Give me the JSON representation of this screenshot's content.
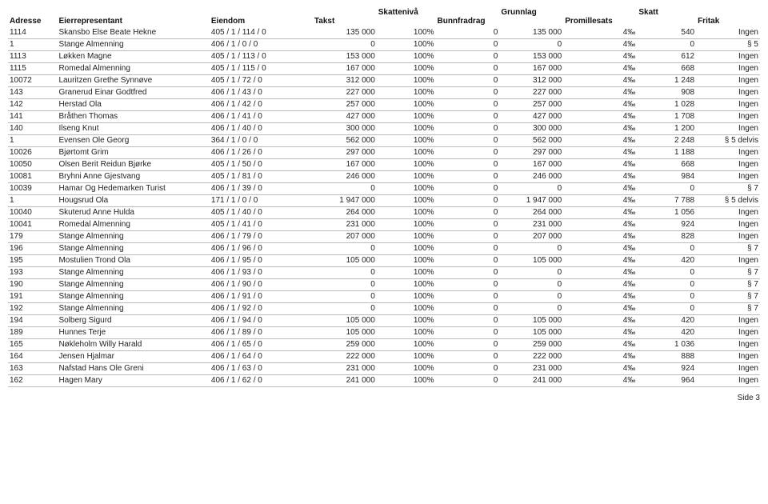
{
  "headers_top": {
    "skatteniva": "Skattenivå",
    "grunnlag": "Grunnlag",
    "skatt": "Skatt"
  },
  "headers_sub": {
    "adresse": "Adresse",
    "eier": "Eierrepresentant",
    "eiendom": "Eiendom",
    "takst": "Takst",
    "bunnfradrag": "Bunnfradrag",
    "promillesats": "Promillesats",
    "fritak": "Fritak"
  },
  "rows": [
    {
      "adresse": "1114",
      "eier": "Skansbo Else Beate Hekne",
      "eiendom": "405 / 1 / 114 / 0",
      "takst": "135 000",
      "skatteniva": "100%",
      "bunn": "0",
      "grunnlag": "135 000",
      "promille": "4‰",
      "skatt": "540",
      "fritak": "Ingen"
    },
    {
      "adresse": "1",
      "eier": "Stange Almenning",
      "eiendom": "406 / 1 / 0 / 0",
      "takst": "0",
      "skatteniva": "100%",
      "bunn": "0",
      "grunnlag": "0",
      "promille": "4‰",
      "skatt": "0",
      "fritak": "§ 5"
    },
    {
      "adresse": "1113",
      "eier": "Løkken Magne",
      "eiendom": "405 / 1 / 113 / 0",
      "takst": "153 000",
      "skatteniva": "100%",
      "bunn": "0",
      "grunnlag": "153 000",
      "promille": "4‰",
      "skatt": "612",
      "fritak": "Ingen"
    },
    {
      "adresse": "1115",
      "eier": "Romedal Almenning",
      "eiendom": "405 / 1 / 115 / 0",
      "takst": "167 000",
      "skatteniva": "100%",
      "bunn": "0",
      "grunnlag": "167 000",
      "promille": "4‰",
      "skatt": "668",
      "fritak": "Ingen"
    },
    {
      "adresse": "10072",
      "eier": "Lauritzen Grethe Synnøve",
      "eiendom": "405 / 1 / 72 / 0",
      "takst": "312 000",
      "skatteniva": "100%",
      "bunn": "0",
      "grunnlag": "312 000",
      "promille": "4‰",
      "skatt": "1 248",
      "fritak": "Ingen"
    },
    {
      "adresse": "143",
      "eier": "Granerud Einar Godtfred",
      "eiendom": "406 / 1 / 43 / 0",
      "takst": "227 000",
      "skatteniva": "100%",
      "bunn": "0",
      "grunnlag": "227 000",
      "promille": "4‰",
      "skatt": "908",
      "fritak": "Ingen"
    },
    {
      "adresse": "142",
      "eier": "Herstad Ola",
      "eiendom": "406 / 1 / 42 / 0",
      "takst": "257 000",
      "skatteniva": "100%",
      "bunn": "0",
      "grunnlag": "257 000",
      "promille": "4‰",
      "skatt": "1 028",
      "fritak": "Ingen"
    },
    {
      "adresse": "141",
      "eier": "Bråthen Thomas",
      "eiendom": "406 / 1 / 41 / 0",
      "takst": "427 000",
      "skatteniva": "100%",
      "bunn": "0",
      "grunnlag": "427 000",
      "promille": "4‰",
      "skatt": "1 708",
      "fritak": "Ingen"
    },
    {
      "adresse": "140",
      "eier": "Ilseng Knut",
      "eiendom": "406 / 1 / 40 / 0",
      "takst": "300 000",
      "skatteniva": "100%",
      "bunn": "0",
      "grunnlag": "300 000",
      "promille": "4‰",
      "skatt": "1 200",
      "fritak": "Ingen"
    },
    {
      "adresse": "1",
      "eier": "Evensen Ole Georg",
      "eiendom": "364 / 1 / 0 / 0",
      "takst": "562 000",
      "skatteniva": "100%",
      "bunn": "0",
      "grunnlag": "562 000",
      "promille": "4‰",
      "skatt": "2 248",
      "fritak": "§ 5 delvis"
    },
    {
      "adresse": "10026",
      "eier": "Bjørtomt Grim",
      "eiendom": "406 / 1 / 26 / 0",
      "takst": "297 000",
      "skatteniva": "100%",
      "bunn": "0",
      "grunnlag": "297 000",
      "promille": "4‰",
      "skatt": "1 188",
      "fritak": "Ingen"
    },
    {
      "adresse": "10050",
      "eier": "Olsen Berit Reidun Bjørke",
      "eiendom": "405 / 1 / 50 / 0",
      "takst": "167 000",
      "skatteniva": "100%",
      "bunn": "0",
      "grunnlag": "167 000",
      "promille": "4‰",
      "skatt": "668",
      "fritak": "Ingen"
    },
    {
      "adresse": "10081",
      "eier": "Bryhni Anne Gjestvang",
      "eiendom": "405 / 1 / 81 / 0",
      "takst": "246 000",
      "skatteniva": "100%",
      "bunn": "0",
      "grunnlag": "246 000",
      "promille": "4‰",
      "skatt": "984",
      "fritak": "Ingen"
    },
    {
      "adresse": "10039",
      "eier": "Hamar Og Hedemarken Turist",
      "eiendom": "406 / 1 / 39 / 0",
      "takst": "0",
      "skatteniva": "100%",
      "bunn": "0",
      "grunnlag": "0",
      "promille": "4‰",
      "skatt": "0",
      "fritak": "§ 7"
    },
    {
      "adresse": "1",
      "eier": "Hougsrud Ola",
      "eiendom": "171 / 1 / 0 / 0",
      "takst": "1 947 000",
      "skatteniva": "100%",
      "bunn": "0",
      "grunnlag": "1 947 000",
      "promille": "4‰",
      "skatt": "7 788",
      "fritak": "§ 5 delvis"
    },
    {
      "adresse": "10040",
      "eier": "Skuterud Anne Hulda",
      "eiendom": "405 / 1 / 40 / 0",
      "takst": "264 000",
      "skatteniva": "100%",
      "bunn": "0",
      "grunnlag": "264 000",
      "promille": "4‰",
      "skatt": "1 056",
      "fritak": "Ingen"
    },
    {
      "adresse": "10041",
      "eier": "Romedal Almenning",
      "eiendom": "405 / 1 / 41 / 0",
      "takst": "231 000",
      "skatteniva": "100%",
      "bunn": "0",
      "grunnlag": "231 000",
      "promille": "4‰",
      "skatt": "924",
      "fritak": "Ingen"
    },
    {
      "adresse": "179",
      "eier": "Stange Almenning",
      "eiendom": "406 / 1 / 79 / 0",
      "takst": "207 000",
      "skatteniva": "100%",
      "bunn": "0",
      "grunnlag": "207 000",
      "promille": "4‰",
      "skatt": "828",
      "fritak": "Ingen"
    },
    {
      "adresse": "196",
      "eier": "Stange Almenning",
      "eiendom": "406 / 1 / 96 / 0",
      "takst": "0",
      "skatteniva": "100%",
      "bunn": "0",
      "grunnlag": "0",
      "promille": "4‰",
      "skatt": "0",
      "fritak": "§ 7"
    },
    {
      "adresse": "195",
      "eier": "Mostulien Trond Ola",
      "eiendom": "406 / 1 / 95 / 0",
      "takst": "105 000",
      "skatteniva": "100%",
      "bunn": "0",
      "grunnlag": "105 000",
      "promille": "4‰",
      "skatt": "420",
      "fritak": "Ingen"
    },
    {
      "adresse": "193",
      "eier": "Stange Almenning",
      "eiendom": "406 / 1 / 93 / 0",
      "takst": "0",
      "skatteniva": "100%",
      "bunn": "0",
      "grunnlag": "0",
      "promille": "4‰",
      "skatt": "0",
      "fritak": "§ 7"
    },
    {
      "adresse": "190",
      "eier": "Stange Almenning",
      "eiendom": "406 / 1 / 90 / 0",
      "takst": "0",
      "skatteniva": "100%",
      "bunn": "0",
      "grunnlag": "0",
      "promille": "4‰",
      "skatt": "0",
      "fritak": "§ 7"
    },
    {
      "adresse": "191",
      "eier": "Stange Almenning",
      "eiendom": "406 / 1 / 91 / 0",
      "takst": "0",
      "skatteniva": "100%",
      "bunn": "0",
      "grunnlag": "0",
      "promille": "4‰",
      "skatt": "0",
      "fritak": "§ 7"
    },
    {
      "adresse": "192",
      "eier": "Stange Almenning",
      "eiendom": "406 / 1 / 92 / 0",
      "takst": "0",
      "skatteniva": "100%",
      "bunn": "0",
      "grunnlag": "0",
      "promille": "4‰",
      "skatt": "0",
      "fritak": "§ 7"
    },
    {
      "adresse": "194",
      "eier": "Solberg Sigurd",
      "eiendom": "406 / 1 / 94 / 0",
      "takst": "105 000",
      "skatteniva": "100%",
      "bunn": "0",
      "grunnlag": "105 000",
      "promille": "4‰",
      "skatt": "420",
      "fritak": "Ingen"
    },
    {
      "adresse": "189",
      "eier": "Hunnes Terje",
      "eiendom": "406 / 1 / 89 / 0",
      "takst": "105 000",
      "skatteniva": "100%",
      "bunn": "0",
      "grunnlag": "105 000",
      "promille": "4‰",
      "skatt": "420",
      "fritak": "Ingen"
    },
    {
      "adresse": "165",
      "eier": "Nøkleholm Willy Harald",
      "eiendom": "406 / 1 / 65 / 0",
      "takst": "259 000",
      "skatteniva": "100%",
      "bunn": "0",
      "grunnlag": "259 000",
      "promille": "4‰",
      "skatt": "1 036",
      "fritak": "Ingen"
    },
    {
      "adresse": "164",
      "eier": "Jensen Hjalmar",
      "eiendom": "406 / 1 / 64 / 0",
      "takst": "222 000",
      "skatteniva": "100%",
      "bunn": "0",
      "grunnlag": "222 000",
      "promille": "4‰",
      "skatt": "888",
      "fritak": "Ingen"
    },
    {
      "adresse": "163",
      "eier": "Nafstad Hans Ole Greni",
      "eiendom": "406 / 1 / 63 / 0",
      "takst": "231 000",
      "skatteniva": "100%",
      "bunn": "0",
      "grunnlag": "231 000",
      "promille": "4‰",
      "skatt": "924",
      "fritak": "Ingen"
    },
    {
      "adresse": "162",
      "eier": "Hagen Mary",
      "eiendom": "406 / 1 / 62 / 0",
      "takst": "241 000",
      "skatteniva": "100%",
      "bunn": "0",
      "grunnlag": "241 000",
      "promille": "4‰",
      "skatt": "964",
      "fritak": "Ingen"
    }
  ],
  "footer": "Side 3"
}
